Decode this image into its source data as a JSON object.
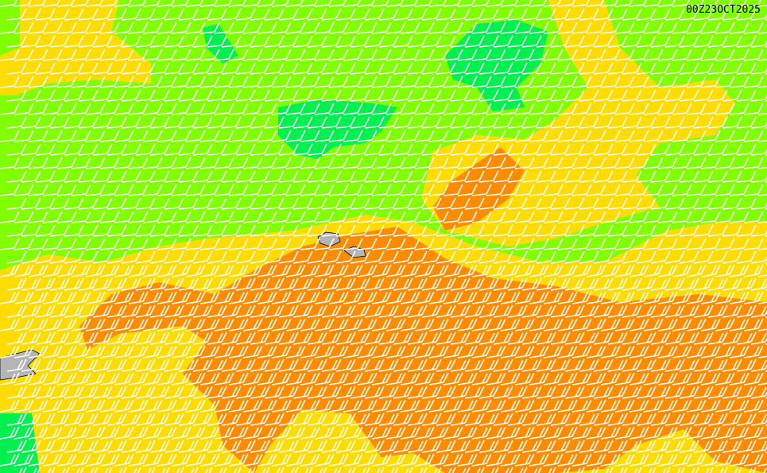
{
  "map": {
    "valid_time": "00Z23OCT2025",
    "colors": {
      "background": "#80ff00",
      "strong_green": "#00f050",
      "yellow": "#ffdc00",
      "orange": "#ff8c00",
      "land": "#b4b4b4",
      "barbs": "#ffffff"
    }
  }
}
